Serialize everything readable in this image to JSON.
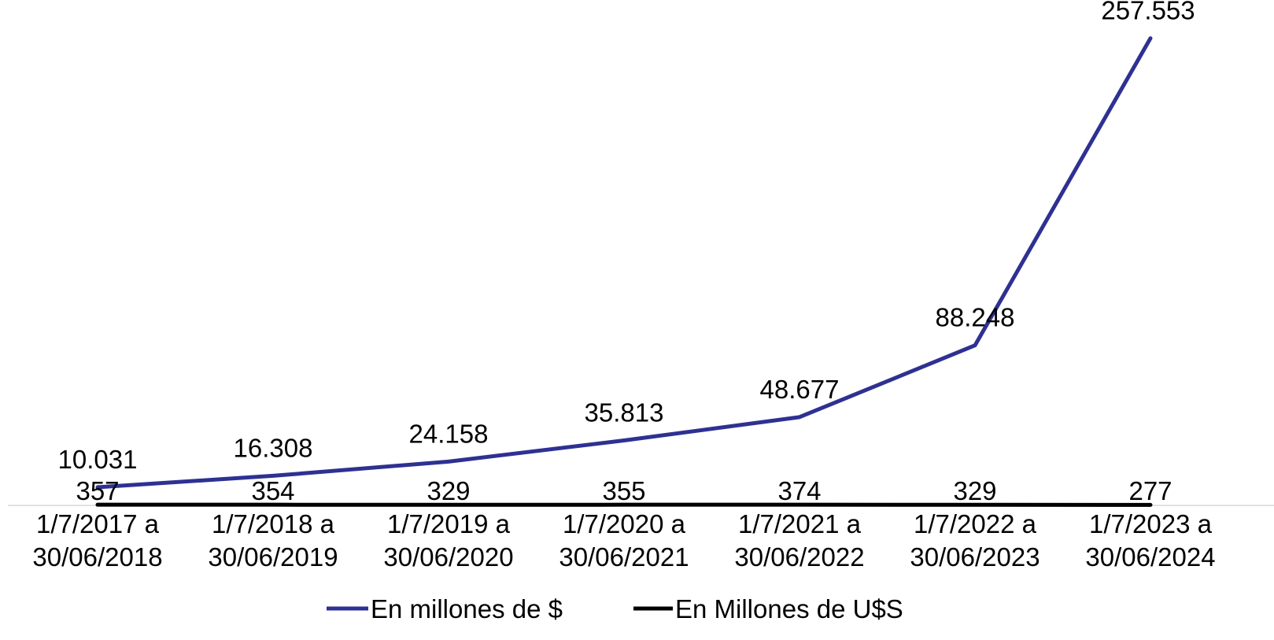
{
  "chart_data": {
    "type": "line",
    "categories": [
      [
        "1/7/2017 a",
        "30/06/2018"
      ],
      [
        "1/7/2018 a",
        "30/06/2019"
      ],
      [
        "1/7/2019 a",
        "30/06/2020"
      ],
      [
        "1/7/2020 a",
        "30/06/2021"
      ],
      [
        "1/7/2021 a",
        "30/06/2022"
      ],
      [
        "1/7/2022 a",
        "30/06/2023"
      ],
      [
        "1/7/2023 a",
        "30/06/2024"
      ]
    ],
    "series": [
      {
        "name": "En millones de $",
        "color": "#2E3192",
        "values": [
          10031,
          16308,
          24158,
          35813,
          48677,
          88248,
          257553
        ],
        "labels": [
          "10.031",
          "16.308",
          "24.158",
          "35.813",
          "48.677",
          "88.248",
          "257.553"
        ]
      },
      {
        "name": "En Millones de U$S",
        "color": "#000000",
        "values": [
          357,
          354,
          329,
          355,
          374,
          329,
          277
        ],
        "labels": [
          "357",
          "354",
          "329",
          "355",
          "374",
          "329",
          "277"
        ]
      }
    ],
    "ylim": [
      0,
      270000
    ],
    "grid": false,
    "legend": "bottom"
  }
}
